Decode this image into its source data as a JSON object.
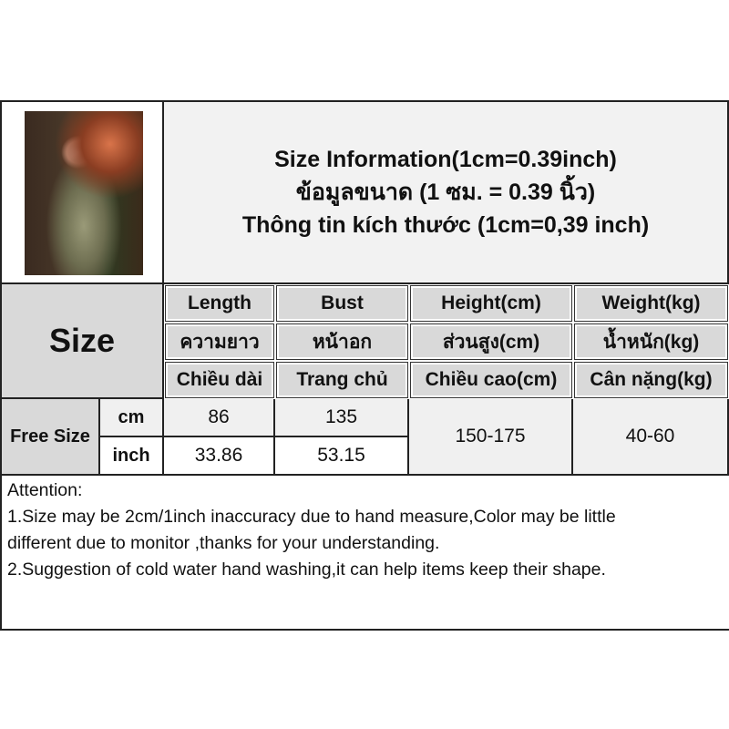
{
  "title": {
    "lines": [
      "Size Information(1cm=0.39inch)",
      "ข้อมูลขนาด (1 ซม. = 0.39 นิ้ว)",
      "Thông tin kích thước (1cm=0,39 inch)"
    ]
  },
  "table": {
    "size_label": "Size",
    "columns": [
      {
        "en": "Length",
        "th": "ความยาว",
        "vi": "Chiều dài"
      },
      {
        "en": "Bust",
        "th": "หน้าอก",
        "vi": "Trang chủ"
      },
      {
        "en": "Height(cm)",
        "th": "ส่วนสูง(cm)",
        "vi": "Chiều cao(cm)"
      },
      {
        "en": "Weight(kg)",
        "th": "น้ำหนัก(kg)",
        "vi": "Cân nặng(kg)"
      }
    ],
    "row_label": "Free Size",
    "units": [
      "cm",
      "inch"
    ],
    "cm": [
      "86",
      "135"
    ],
    "inch": [
      "33.86",
      "53.15"
    ],
    "height": "150-175",
    "weight": "40-60"
  },
  "attention": {
    "heading": "Attention:",
    "lines": [
      "1.Size may be 2cm/1inch inaccuracy due to hand measure,Color may be little",
      "different due to monitor ,thanks for your understanding.",
      "2.Suggestion of cold water hand washing,it can help items keep their shape."
    ]
  }
}
